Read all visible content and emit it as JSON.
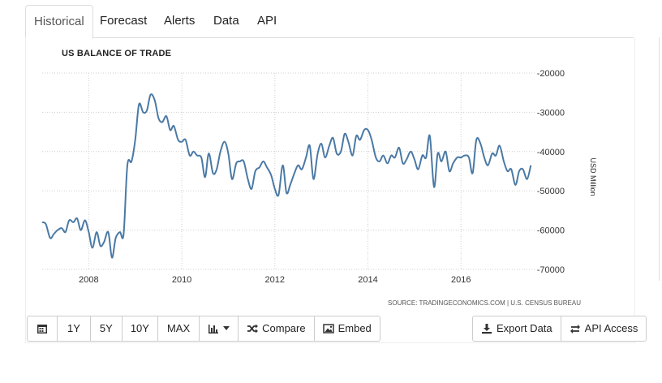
{
  "tabs": [
    {
      "label": "Historical",
      "active": true
    },
    {
      "label": "Forecast"
    },
    {
      "label": "Alerts"
    },
    {
      "label": "Data"
    },
    {
      "label": "API"
    }
  ],
  "toolbar": {
    "range_buttons": [
      "1Y",
      "5Y",
      "10Y",
      "MAX"
    ],
    "compare_label": "Compare",
    "embed_label": "Embed",
    "export_label": "Export Data",
    "api_label": "API Access",
    "icons": [
      "calendar-icon",
      "bar-chart-icon",
      "shuffle-icon",
      "image-icon",
      "download-icon",
      "exchange-icon"
    ]
  },
  "colors": {
    "line": "#4a79a5",
    "grid": "#cfcfcf"
  },
  "chart_data": {
    "type": "line",
    "title": "US BALANCE OF TRADE",
    "ylabel": "USD Million",
    "source": "SOURCE: TRADINGECONOMICS.COM | U.S. CENSUS BUREAU",
    "ylim": [
      -70000,
      -20000
    ],
    "yticks": [
      -20000,
      -30000,
      -40000,
      -50000,
      -60000,
      -70000
    ],
    "xticks": [
      "2008",
      "2010",
      "2012",
      "2014",
      "2016"
    ],
    "xlim": [
      2007.0,
      2017.6
    ],
    "grid": true,
    "series": [
      {
        "x": [
          2007.0,
          2007.08,
          2007.17,
          2007.25,
          2007.33,
          2007.42,
          2007.5,
          2007.58,
          2007.67,
          2007.75,
          2007.83,
          2007.92,
          2008.0,
          2008.08,
          2008.17,
          2008.25,
          2008.33,
          2008.42,
          2008.5,
          2008.58,
          2008.67,
          2008.75,
          2008.83,
          2008.92,
          2009.0,
          2009.08,
          2009.17,
          2009.25,
          2009.33,
          2009.42,
          2009.5,
          2009.58,
          2009.67,
          2009.75,
          2009.83,
          2009.92,
          2010.0,
          2010.08,
          2010.17,
          2010.25,
          2010.33,
          2010.42,
          2010.5,
          2010.58,
          2010.67,
          2010.75,
          2010.83,
          2010.92,
          2011.0,
          2011.08,
          2011.17,
          2011.25,
          2011.33,
          2011.42,
          2011.5,
          2011.58,
          2011.67,
          2011.75,
          2011.83,
          2011.92,
          2012.0,
          2012.08,
          2012.17,
          2012.25,
          2012.33,
          2012.42,
          2012.5,
          2012.58,
          2012.67,
          2012.75,
          2012.83,
          2012.92,
          2013.0,
          2013.08,
          2013.17,
          2013.25,
          2013.33,
          2013.42,
          2013.5,
          2013.58,
          2013.67,
          2013.75,
          2013.83,
          2013.92,
          2014.0,
          2014.08,
          2014.17,
          2014.25,
          2014.33,
          2014.42,
          2014.5,
          2014.58,
          2014.67,
          2014.75,
          2014.83,
          2014.92,
          2015.0,
          2015.08,
          2015.17,
          2015.25,
          2015.33,
          2015.42,
          2015.5,
          2015.58,
          2015.67,
          2015.75,
          2015.83,
          2015.92,
          2016.0,
          2016.08,
          2016.17,
          2016.25,
          2016.33,
          2016.42,
          2016.5,
          2016.58,
          2016.67,
          2016.75,
          2016.83,
          2016.92,
          2017.0,
          2017.08,
          2017.17,
          2017.25,
          2017.33,
          2017.42,
          2017.5
        ],
        "y": [
          -58000,
          -58500,
          -62000,
          -61000,
          -60000,
          -59500,
          -60500,
          -57500,
          -58000,
          -57000,
          -60000,
          -57500,
          -60500,
          -64500,
          -60500,
          -64000,
          -63000,
          -60500,
          -67000,
          -62000,
          -60500,
          -61000,
          -43500,
          -42500,
          -37000,
          -28000,
          -30000,
          -29500,
          -25500,
          -27000,
          -31500,
          -32500,
          -31000,
          -34500,
          -33500,
          -37000,
          -37500,
          -37000,
          -41000,
          -40000,
          -41000,
          -41500,
          -46500,
          -40500,
          -45500,
          -44500,
          -40000,
          -37500,
          -40500,
          -47000,
          -43000,
          -42500,
          -42500,
          -47000,
          -49500,
          -45000,
          -44000,
          -42500,
          -44000,
          -46000,
          -49500,
          -51000,
          -43500,
          -50500,
          -48500,
          -45500,
          -43500,
          -44500,
          -41500,
          -38500,
          -47000,
          -40500,
          -38000,
          -41500,
          -38500,
          -36500,
          -40500,
          -40000,
          -35500,
          -37500,
          -41000,
          -36000,
          -37000,
          -34500,
          -34500,
          -37000,
          -41500,
          -42500,
          -41000,
          -43000,
          -41000,
          -41500,
          -39000,
          -43000,
          -42000,
          -40000,
          -42000,
          -44500,
          -41000,
          -41500,
          -36000,
          -49000,
          -40500,
          -42500,
          -40000,
          -45000,
          -43000,
          -41500,
          -41500,
          -41000,
          -41500,
          -45500,
          -37000,
          -38000,
          -41500,
          -43500,
          -40500,
          -41000,
          -38500,
          -42500,
          -45000,
          -44500,
          -48500,
          -45000,
          -44500,
          -47000,
          -43500
        ]
      }
    ]
  }
}
